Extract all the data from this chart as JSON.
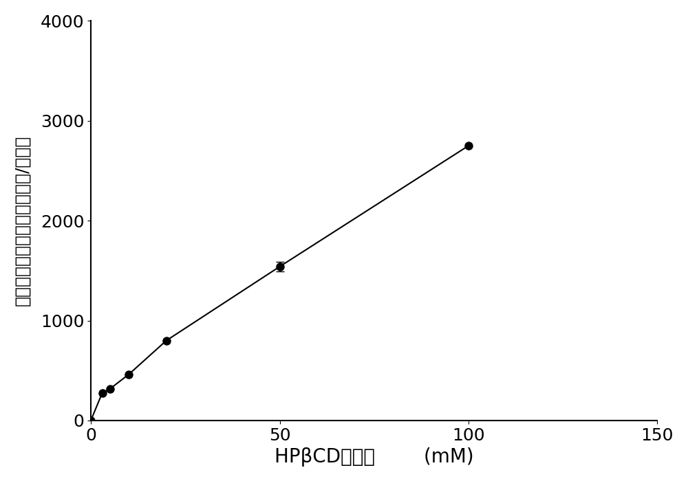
{
  "x": [
    0,
    3,
    5,
    10,
    20,
    50,
    100
  ],
  "y": [
    0,
    275,
    315,
    460,
    800,
    1540,
    2750
  ],
  "yerr": [
    0,
    0,
    0,
    0,
    0,
    50,
    0
  ],
  "xlim": [
    0,
    150
  ],
  "ylim": [
    0,
    4000
  ],
  "xticks": [
    0,
    50,
    100,
    150
  ],
  "yticks": [
    0,
    1000,
    2000,
    3000,
    4000
  ],
  "xlabel_main": "HPβCD的浓度",
  "xlabel_unit": "(mM)",
  "ylabel": "溶液中布地奈德的浓度（微克/毫升）",
  "line_color": "#000000",
  "marker_color": "#000000",
  "background_color": "#ffffff",
  "marker_size": 8,
  "line_width": 1.5,
  "tick_fontsize": 18,
  "label_fontsize": 20,
  "ylabel_fontsize": 18
}
